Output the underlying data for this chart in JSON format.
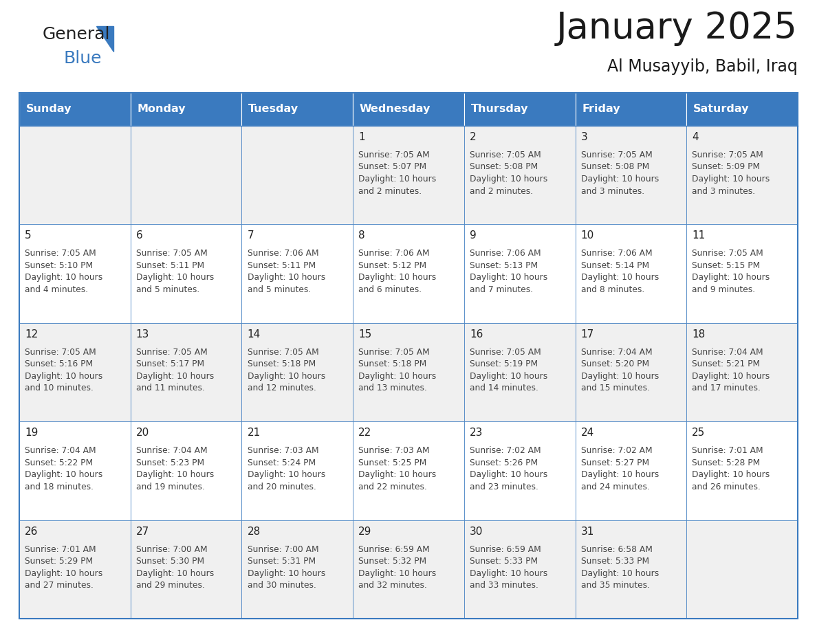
{
  "title": "January 2025",
  "subtitle": "Al Musayyib, Babil, Iraq",
  "days_of_week": [
    "Sunday",
    "Monday",
    "Tuesday",
    "Wednesday",
    "Thursday",
    "Friday",
    "Saturday"
  ],
  "header_bg": "#3a7abf",
  "header_text_color": "#ffffff",
  "cell_bg_odd": "#f0f0f0",
  "cell_bg_even": "#ffffff",
  "border_color": "#3a7abf",
  "text_color": "#444444",
  "day_num_color": "#222222",
  "calendar_data": [
    [
      null,
      null,
      null,
      {
        "day": 1,
        "sunrise": "7:05 AM",
        "sunset": "5:07 PM",
        "dl1": "Daylight: 10 hours",
        "dl2": "and 2 minutes."
      },
      {
        "day": 2,
        "sunrise": "7:05 AM",
        "sunset": "5:08 PM",
        "dl1": "Daylight: 10 hours",
        "dl2": "and 2 minutes."
      },
      {
        "day": 3,
        "sunrise": "7:05 AM",
        "sunset": "5:08 PM",
        "dl1": "Daylight: 10 hours",
        "dl2": "and 3 minutes."
      },
      {
        "day": 4,
        "sunrise": "7:05 AM",
        "sunset": "5:09 PM",
        "dl1": "Daylight: 10 hours",
        "dl2": "and 3 minutes."
      }
    ],
    [
      {
        "day": 5,
        "sunrise": "7:05 AM",
        "sunset": "5:10 PM",
        "dl1": "Daylight: 10 hours",
        "dl2": "and 4 minutes."
      },
      {
        "day": 6,
        "sunrise": "7:05 AM",
        "sunset": "5:11 PM",
        "dl1": "Daylight: 10 hours",
        "dl2": "and 5 minutes."
      },
      {
        "day": 7,
        "sunrise": "7:06 AM",
        "sunset": "5:11 PM",
        "dl1": "Daylight: 10 hours",
        "dl2": "and 5 minutes."
      },
      {
        "day": 8,
        "sunrise": "7:06 AM",
        "sunset": "5:12 PM",
        "dl1": "Daylight: 10 hours",
        "dl2": "and 6 minutes."
      },
      {
        "day": 9,
        "sunrise": "7:06 AM",
        "sunset": "5:13 PM",
        "dl1": "Daylight: 10 hours",
        "dl2": "and 7 minutes."
      },
      {
        "day": 10,
        "sunrise": "7:06 AM",
        "sunset": "5:14 PM",
        "dl1": "Daylight: 10 hours",
        "dl2": "and 8 minutes."
      },
      {
        "day": 11,
        "sunrise": "7:05 AM",
        "sunset": "5:15 PM",
        "dl1": "Daylight: 10 hours",
        "dl2": "and 9 minutes."
      }
    ],
    [
      {
        "day": 12,
        "sunrise": "7:05 AM",
        "sunset": "5:16 PM",
        "dl1": "Daylight: 10 hours",
        "dl2": "and 10 minutes."
      },
      {
        "day": 13,
        "sunrise": "7:05 AM",
        "sunset": "5:17 PM",
        "dl1": "Daylight: 10 hours",
        "dl2": "and 11 minutes."
      },
      {
        "day": 14,
        "sunrise": "7:05 AM",
        "sunset": "5:18 PM",
        "dl1": "Daylight: 10 hours",
        "dl2": "and 12 minutes."
      },
      {
        "day": 15,
        "sunrise": "7:05 AM",
        "sunset": "5:18 PM",
        "dl1": "Daylight: 10 hours",
        "dl2": "and 13 minutes."
      },
      {
        "day": 16,
        "sunrise": "7:05 AM",
        "sunset": "5:19 PM",
        "dl1": "Daylight: 10 hours",
        "dl2": "and 14 minutes."
      },
      {
        "day": 17,
        "sunrise": "7:04 AM",
        "sunset": "5:20 PM",
        "dl1": "Daylight: 10 hours",
        "dl2": "and 15 minutes."
      },
      {
        "day": 18,
        "sunrise": "7:04 AM",
        "sunset": "5:21 PM",
        "dl1": "Daylight: 10 hours",
        "dl2": "and 17 minutes."
      }
    ],
    [
      {
        "day": 19,
        "sunrise": "7:04 AM",
        "sunset": "5:22 PM",
        "dl1": "Daylight: 10 hours",
        "dl2": "and 18 minutes."
      },
      {
        "day": 20,
        "sunrise": "7:04 AM",
        "sunset": "5:23 PM",
        "dl1": "Daylight: 10 hours",
        "dl2": "and 19 minutes."
      },
      {
        "day": 21,
        "sunrise": "7:03 AM",
        "sunset": "5:24 PM",
        "dl1": "Daylight: 10 hours",
        "dl2": "and 20 minutes."
      },
      {
        "day": 22,
        "sunrise": "7:03 AM",
        "sunset": "5:25 PM",
        "dl1": "Daylight: 10 hours",
        "dl2": "and 22 minutes."
      },
      {
        "day": 23,
        "sunrise": "7:02 AM",
        "sunset": "5:26 PM",
        "dl1": "Daylight: 10 hours",
        "dl2": "and 23 minutes."
      },
      {
        "day": 24,
        "sunrise": "7:02 AM",
        "sunset": "5:27 PM",
        "dl1": "Daylight: 10 hours",
        "dl2": "and 24 minutes."
      },
      {
        "day": 25,
        "sunrise": "7:01 AM",
        "sunset": "5:28 PM",
        "dl1": "Daylight: 10 hours",
        "dl2": "and 26 minutes."
      }
    ],
    [
      {
        "day": 26,
        "sunrise": "7:01 AM",
        "sunset": "5:29 PM",
        "dl1": "Daylight: 10 hours",
        "dl2": "and 27 minutes."
      },
      {
        "day": 27,
        "sunrise": "7:00 AM",
        "sunset": "5:30 PM",
        "dl1": "Daylight: 10 hours",
        "dl2": "and 29 minutes."
      },
      {
        "day": 28,
        "sunrise": "7:00 AM",
        "sunset": "5:31 PM",
        "dl1": "Daylight: 10 hours",
        "dl2": "and 30 minutes."
      },
      {
        "day": 29,
        "sunrise": "6:59 AM",
        "sunset": "5:32 PM",
        "dl1": "Daylight: 10 hours",
        "dl2": "and 32 minutes."
      },
      {
        "day": 30,
        "sunrise": "6:59 AM",
        "sunset": "5:33 PM",
        "dl1": "Daylight: 10 hours",
        "dl2": "and 33 minutes."
      },
      {
        "day": 31,
        "sunrise": "6:58 AM",
        "sunset": "5:33 PM",
        "dl1": "Daylight: 10 hours",
        "dl2": "and 35 minutes."
      },
      null
    ]
  ],
  "logo_general_color": "#222222",
  "logo_blue_color": "#3a7abf",
  "logo_triangle_color": "#3a7abf"
}
